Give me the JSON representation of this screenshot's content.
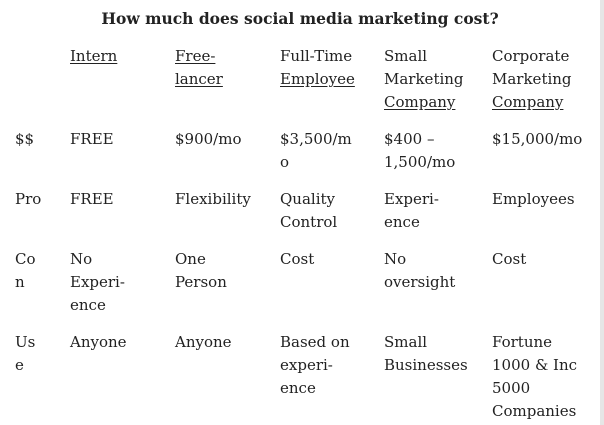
{
  "title": "How much does social media marketing cost?",
  "columns": [
    {
      "lines": [
        "Intern"
      ]
    },
    {
      "lines": [
        "Free-",
        "lancer"
      ]
    },
    {
      "lines": [
        "Full-Time",
        "Employee"
      ]
    },
    {
      "lines": [
        "Small",
        "Marketing",
        "Company"
      ]
    },
    {
      "lines": [
        "Corporate",
        "Marketing",
        "Company"
      ]
    }
  ],
  "rows": [
    {
      "label": [
        "$$"
      ],
      "cells": [
        [
          "FREE"
        ],
        [
          "$900/mo"
        ],
        [
          "$3,500/m",
          "o"
        ],
        [
          "$400 –",
          "1,500/mo"
        ],
        [
          "$15,000/mo"
        ]
      ]
    },
    {
      "label": [
        "Pro"
      ],
      "cells": [
        [
          "FREE"
        ],
        [
          "Flexibility"
        ],
        [
          "Quality",
          "Control"
        ],
        [
          "Experi-",
          "ence"
        ],
        [
          "Employees"
        ]
      ]
    },
    {
      "label": [
        "Co",
        "n"
      ],
      "cells": [
        [
          "No",
          "Experi-",
          "ence"
        ],
        [
          "One",
          "Person"
        ],
        [
          "Cost"
        ],
        [
          "No",
          "oversight"
        ],
        [
          "Cost"
        ]
      ]
    },
    {
      "label": [
        "Us",
        "e"
      ],
      "cells": [
        [
          "Anyone"
        ],
        [
          "Anyone"
        ],
        [
          "Based on",
          "experi-",
          "ence"
        ],
        [
          "Small",
          "Businesses"
        ],
        [
          "Fortune",
          "1000 & Inc",
          "5000",
          "Companies"
        ]
      ]
    }
  ]
}
